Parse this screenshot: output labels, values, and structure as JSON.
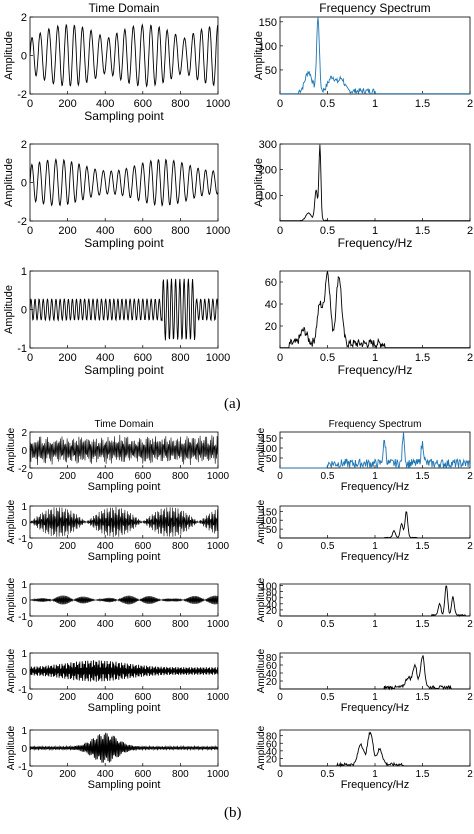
{
  "labels": {
    "a": "(a)",
    "b": "(b)"
  },
  "chart_data": [
    {
      "type": "line",
      "title": "Time Domain",
      "xlabel": "Sampling point",
      "ylabel": "Amplitude",
      "xlim": [
        0,
        1000
      ],
      "ylim": [
        -2,
        2
      ],
      "xticks": [
        "0",
        "200",
        "400",
        "600",
        "800",
        "1000"
      ],
      "yticks": [
        "-2",
        "0",
        "2"
      ],
      "grid": false,
      "color": "#000000",
      "series": [
        {
          "kind": "time",
          "amp": 1.6,
          "period": 45,
          "env": "bursts"
        }
      ]
    },
    {
      "type": "line",
      "title": "Frequency Spectrum",
      "xlabel": "",
      "ylabel": "Amplitude",
      "xlim": [
        0,
        2
      ],
      "ylim": [
        0,
        160
      ],
      "xticks": [
        "0",
        "0.5",
        "1",
        "1.5",
        "2"
      ],
      "yticks": [
        "50",
        "100",
        "150"
      ],
      "grid": false,
      "color": "#1f77b4",
      "series": [
        {
          "kind": "spec",
          "peaks": [
            [
              0.4,
              155,
              0.02
            ],
            [
              0.3,
              40,
              0.05
            ],
            [
              0.55,
              30,
              0.06
            ],
            [
              0.65,
              25,
              0.04
            ]
          ],
          "noise": 12,
          "from": 0.2,
          "to": 1.0
        }
      ]
    },
    {
      "type": "line",
      "title": "",
      "xlabel": "Sampling point",
      "ylabel": "Amplitude",
      "xlim": [
        0,
        1000
      ],
      "ylim": [
        -2,
        2
      ],
      "xticks": [
        "0",
        "200",
        "400",
        "600",
        "800",
        "1000"
      ],
      "yticks": [
        "-2",
        "0",
        "2"
      ],
      "grid": false,
      "color": "#000000",
      "series": [
        {
          "kind": "time",
          "amp": 1.2,
          "period": 42,
          "env": "steady"
        }
      ]
    },
    {
      "type": "line",
      "title": "",
      "xlabel": "Frequency/Hz",
      "ylabel": "Amplitude",
      "xlim": [
        0,
        2
      ],
      "ylim": [
        0,
        300
      ],
      "xticks": [
        "0",
        "0.5",
        "1",
        "1.5",
        "2"
      ],
      "yticks": [
        "100",
        "200",
        "300"
      ],
      "grid": false,
      "color": "#000000",
      "series": [
        {
          "kind": "spec",
          "peaks": [
            [
              0.42,
              295,
              0.015
            ],
            [
              0.38,
              120,
              0.02
            ],
            [
              0.3,
              30,
              0.04
            ]
          ],
          "noise": 4,
          "from": 0.2,
          "to": 0.5
        }
      ]
    },
    {
      "type": "line",
      "title": "",
      "xlabel": "Sampling point",
      "ylabel": "Amplitude",
      "xlim": [
        0,
        1000
      ],
      "ylim": [
        -1,
        1
      ],
      "xticks": [
        "0",
        "200",
        "400",
        "600",
        "800",
        "1000"
      ],
      "yticks": [
        "-1",
        "0",
        "1"
      ],
      "grid": false,
      "color": "#000000",
      "series": [
        {
          "kind": "time",
          "amp": 0.8,
          "period": 22,
          "env": "late"
        }
      ]
    },
    {
      "type": "line",
      "title": "",
      "xlabel": "Frequency/Hz",
      "ylabel": "",
      "xlim": [
        0,
        2
      ],
      "ylim": [
        0,
        70
      ],
      "xticks": [
        "0",
        "0.5",
        "1",
        "1.5",
        "2"
      ],
      "yticks": [
        "20",
        "40",
        "60"
      ],
      "grid": false,
      "color": "#000000",
      "series": [
        {
          "kind": "spec",
          "peaks": [
            [
              0.5,
              65,
              0.04
            ],
            [
              0.62,
              62,
              0.04
            ],
            [
              0.42,
              35,
              0.04
            ],
            [
              0.25,
              12,
              0.05
            ]
          ],
          "noise": 8,
          "from": 0.1,
          "to": 1.1
        }
      ]
    },
    {
      "type": "line",
      "title": "Time Domain",
      "xlabel": "Sampling point",
      "ylabel": "Amplitude",
      "xlim": [
        0,
        1000
      ],
      "ylim": [
        -2,
        2
      ],
      "xticks": [
        "0",
        "200",
        "400",
        "600",
        "800",
        "1000"
      ],
      "yticks": [
        "-2",
        "0",
        "2"
      ],
      "grid": false,
      "color": "#000000",
      "series": [
        {
          "kind": "time",
          "amp": 1.7,
          "period": 7,
          "env": "noisy"
        }
      ]
    },
    {
      "type": "line",
      "title": "Frequency Spectrum",
      "xlabel": "Frequency/Hz",
      "ylabel": "Amplitude",
      "xlim": [
        0,
        2
      ],
      "ylim": [
        0,
        180
      ],
      "xticks": [
        "0",
        "0.5",
        "1",
        "1.5",
        "2"
      ],
      "yticks": [
        "50",
        "100",
        "150"
      ],
      "grid": false,
      "color": "#1f77b4",
      "series": [
        {
          "kind": "spec",
          "peaks": [
            [
              1.3,
              160,
              0.015
            ],
            [
              1.1,
              110,
              0.02
            ],
            [
              1.5,
              100,
              0.02
            ]
          ],
          "noise": 45,
          "from": 0.5,
          "to": 2.0
        }
      ]
    },
    {
      "type": "line",
      "title": "",
      "xlabel": "Sampling point",
      "ylabel": "Amplitude",
      "xlim": [
        0,
        1000
      ],
      "ylim": [
        -1,
        1
      ],
      "xticks": [
        "0",
        "200",
        "400",
        "600",
        "800",
        "1000"
      ],
      "yticks": [
        "-1",
        "0",
        "1"
      ],
      "grid": false,
      "color": "#000000",
      "series": [
        {
          "kind": "time",
          "amp": 0.95,
          "period": 6,
          "env": "beats"
        }
      ]
    },
    {
      "type": "line",
      "title": "",
      "xlabel": "Frequency/Hz",
      "ylabel": "Amplitude",
      "xlim": [
        0,
        2
      ],
      "ylim": [
        0,
        180
      ],
      "xticks": [
        "0",
        "0.5",
        "1",
        "1.5",
        "2"
      ],
      "yticks": [
        "50",
        "100",
        "150"
      ],
      "grid": false,
      "color": "#000000",
      "series": [
        {
          "kind": "spec",
          "peaks": [
            [
              1.33,
              150,
              0.02
            ],
            [
              1.28,
              80,
              0.02
            ],
            [
              1.2,
              40,
              0.02
            ]
          ],
          "noise": 4,
          "from": 1.1,
          "to": 1.45
        }
      ]
    },
    {
      "type": "line",
      "title": "",
      "xlabel": "",
      "ylabel": "Amplitude",
      "xlim": [
        0,
        1000
      ],
      "ylim": [
        -1,
        1
      ],
      "xticks": [
        "0",
        "200",
        "400",
        "600",
        "800",
        "1000"
      ],
      "yticks": [
        "-1",
        "0",
        "1"
      ],
      "grid": false,
      "color": "#000000",
      "series": [
        {
          "kind": "time",
          "amp": 0.95,
          "period": 5,
          "env": "beats2"
        }
      ]
    },
    {
      "type": "line",
      "title": "",
      "xlabel": "",
      "ylabel": "Amplitude",
      "xlim": [
        0,
        2
      ],
      "ylim": [
        0,
        105
      ],
      "xticks": [
        "0",
        "0.5",
        "1",
        "1.5",
        "2"
      ],
      "yticks": [
        "20",
        "40",
        "60",
        "80",
        "100"
      ],
      "grid": false,
      "color": "#000000",
      "series": [
        {
          "kind": "spec",
          "peaks": [
            [
              1.75,
              100,
              0.02
            ],
            [
              1.82,
              60,
              0.02
            ],
            [
              1.68,
              40,
              0.02
            ]
          ],
          "noise": 5,
          "from": 1.6,
          "to": 1.95
        }
      ]
    },
    {
      "type": "line",
      "title": "",
      "xlabel": "Sampling point",
      "ylabel": "Amplitude",
      "xlim": [
        0,
        1000
      ],
      "ylim": [
        -1,
        1
      ],
      "xticks": [
        "0",
        "200",
        "400",
        "600",
        "800",
        "1000"
      ],
      "yticks": [
        "-1",
        "0",
        "1"
      ],
      "grid": false,
      "color": "#000000",
      "series": [
        {
          "kind": "time",
          "amp": 0.6,
          "period": 6,
          "env": "wide"
        }
      ]
    },
    {
      "type": "line",
      "title": "",
      "xlabel": "Frequency/Hz",
      "ylabel": "Amplitude",
      "xlim": [
        0,
        2
      ],
      "ylim": [
        0,
        90
      ],
      "xticks": [
        "0",
        "0.5",
        "1",
        "1.5",
        "2"
      ],
      "yticks": [
        "20",
        "40",
        "60",
        "80"
      ],
      "grid": false,
      "color": "#000000",
      "series": [
        {
          "kind": "spec",
          "peaks": [
            [
              1.5,
              80,
              0.03
            ],
            [
              1.42,
              55,
              0.03
            ],
            [
              1.35,
              25,
              0.04
            ]
          ],
          "noise": 8,
          "from": 1.1,
          "to": 1.8
        }
      ]
    },
    {
      "type": "line",
      "title": "",
      "xlabel": "Sampling point",
      "ylabel": "Amplitude",
      "xlim": [
        0,
        1000
      ],
      "ylim": [
        -1,
        1
      ],
      "xticks": [
        "0",
        "200",
        "400",
        "600",
        "800",
        "1000"
      ],
      "yticks": [
        "-1",
        "0",
        "1"
      ],
      "grid": false,
      "color": "#000000",
      "series": [
        {
          "kind": "time",
          "amp": 0.85,
          "period": 8,
          "env": "mid"
        }
      ]
    },
    {
      "type": "line",
      "title": "",
      "xlabel": "Frequency/Hz",
      "ylabel": "Amplitude",
      "xlim": [
        0,
        2
      ],
      "ylim": [
        0,
        95
      ],
      "xticks": [
        "0",
        "0.5",
        "1",
        "1.5",
        "2"
      ],
      "yticks": [
        "20",
        "40",
        "60",
        "80"
      ],
      "grid": false,
      "color": "#000000",
      "series": [
        {
          "kind": "spec",
          "peaks": [
            [
              0.95,
              85,
              0.04
            ],
            [
              0.85,
              55,
              0.04
            ],
            [
              1.05,
              40,
              0.04
            ]
          ],
          "noise": 8,
          "from": 0.6,
          "to": 1.3
        }
      ]
    }
  ]
}
